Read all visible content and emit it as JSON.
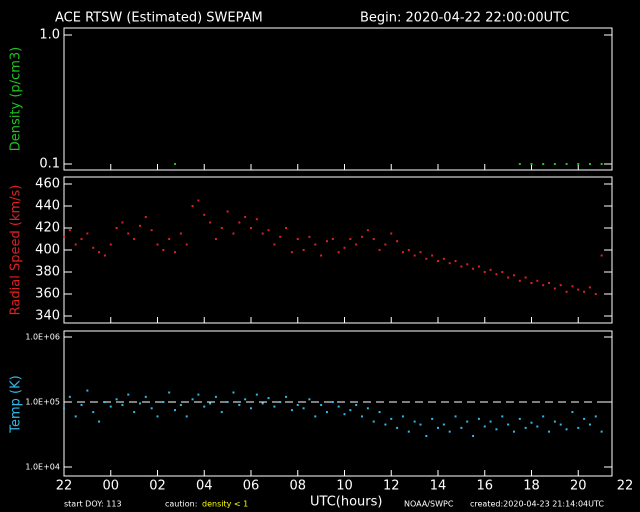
{
  "title": "ACE RTSW (Estimated) SWEPAM",
  "begin": "Begin: 2020-04-22 22:00:00UTC",
  "x_axis": {
    "label": "UTC(hours)",
    "xlim": [
      0,
      24
    ],
    "xticks": [
      {
        "value": 0,
        "label": "22"
      },
      {
        "value": 2,
        "label": "00"
      },
      {
        "value": 4,
        "label": "02"
      },
      {
        "value": 6,
        "label": "04"
      },
      {
        "value": 8,
        "label": "06"
      },
      {
        "value": 10,
        "label": "08"
      },
      {
        "value": 12,
        "label": "10"
      },
      {
        "value": 14,
        "label": "12"
      },
      {
        "value": 16,
        "label": "14"
      },
      {
        "value": 18,
        "label": "16"
      },
      {
        "value": 20,
        "label": "18"
      },
      {
        "value": 22,
        "label": "20"
      },
      {
        "value": 24,
        "label": "22"
      }
    ]
  },
  "footer": {
    "start": "start DOY: 113",
    "caution": "caution:",
    "caution_note": "density < 1",
    "credit": "NOAA/SWPC",
    "created": "created:2020-04-23 21:14:04UTC"
  },
  "chart_data": [
    {
      "type": "scatter",
      "ylabel": "Density (p/cm3)",
      "color": "#22c022",
      "log": true,
      "ylim": [
        0.1,
        1
      ],
      "yticks": [
        {
          "value": 1,
          "label": "1.0"
        },
        0.1
      ],
      "x": [
        4.75,
        19.5,
        20,
        20.5,
        21,
        21.5,
        22,
        22.5,
        23
      ],
      "values": [
        0.1,
        0.1,
        0.1,
        0.1,
        0.1,
        0.1,
        0.1,
        0.1,
        0.1
      ]
    },
    {
      "type": "scatter",
      "ylabel": "Radial Speed (km/s)",
      "color": "#e02020",
      "log": false,
      "ylim": [
        340,
        460
      ],
      "yticks": [
        340,
        360,
        380,
        400,
        420,
        440,
        460
      ],
      "x": [
        0,
        0.25,
        0.5,
        0.75,
        1,
        1.25,
        1.5,
        1.75,
        2,
        2.25,
        2.5,
        2.75,
        3,
        3.25,
        3.5,
        3.75,
        4,
        4.25,
        4.5,
        4.75,
        5,
        5.25,
        5.5,
        5.75,
        6,
        6.25,
        6.5,
        6.75,
        7,
        7.25,
        7.5,
        7.75,
        8,
        8.25,
        8.5,
        8.75,
        9,
        9.25,
        9.5,
        9.75,
        10,
        10.25,
        10.5,
        10.75,
        11,
        11.25,
        11.5,
        11.75,
        12,
        12.25,
        12.5,
        12.75,
        13,
        13.25,
        13.5,
        13.75,
        14,
        14.25,
        14.5,
        14.75,
        15,
        15.25,
        15.5,
        15.75,
        16,
        16.25,
        16.5,
        16.75,
        17,
        17.25,
        17.5,
        17.75,
        18,
        18.25,
        18.5,
        18.75,
        19,
        19.25,
        19.5,
        19.75,
        20,
        20.25,
        20.5,
        20.75,
        21,
        21.25,
        21.5,
        21.75,
        22,
        22.25,
        22.5,
        22.75,
        23
      ],
      "values": [
        412,
        418,
        405,
        410,
        415,
        402,
        398,
        395,
        405,
        420,
        425,
        415,
        410,
        422,
        430,
        418,
        405,
        400,
        410,
        398,
        415,
        405,
        440,
        445,
        432,
        425,
        410,
        420,
        435,
        415,
        425,
        430,
        420,
        428,
        415,
        418,
        405,
        412,
        420,
        398,
        410,
        400,
        412,
        405,
        395,
        408,
        410,
        398,
        402,
        410,
        405,
        412,
        418,
        410,
        400,
        405,
        415,
        408,
        398,
        400,
        395,
        398,
        392,
        395,
        390,
        392,
        388,
        390,
        385,
        387,
        383,
        385,
        380,
        382,
        378,
        380,
        375,
        377,
        372,
        375,
        370,
        372,
        368,
        370,
        365,
        368,
        362,
        367,
        364,
        362,
        366,
        360,
        395
      ]
    },
    {
      "type": "scatter",
      "ylabel": "Temp (K)",
      "color": "#30b8e8",
      "log": true,
      "hline": 100000,
      "ylim": [
        10000,
        1000000
      ],
      "yticks": [
        {
          "value": 10000,
          "label": "1.0E+04"
        },
        {
          "value": 100000,
          "label": "1.0E+05"
        },
        {
          "value": 1000000,
          "label": "1.0E+06"
        }
      ],
      "x": [
        0,
        0.25,
        0.5,
        0.75,
        1,
        1.25,
        1.5,
        1.75,
        2,
        2.25,
        2.5,
        2.75,
        3,
        3.25,
        3.5,
        3.75,
        4,
        4.25,
        4.5,
        4.75,
        5,
        5.25,
        5.5,
        5.75,
        6,
        6.25,
        6.5,
        6.75,
        7,
        7.25,
        7.5,
        7.75,
        8,
        8.25,
        8.5,
        8.75,
        9,
        9.25,
        9.5,
        9.75,
        10,
        10.25,
        10.5,
        10.75,
        11,
        11.25,
        11.5,
        11.75,
        12,
        12.25,
        12.5,
        12.75,
        13,
        13.25,
        13.5,
        13.75,
        14,
        14.25,
        14.5,
        14.75,
        15,
        15.25,
        15.5,
        15.75,
        16,
        16.25,
        16.5,
        16.75,
        17,
        17.25,
        17.5,
        17.75,
        18,
        18.25,
        18.5,
        18.75,
        19,
        19.25,
        19.5,
        19.75,
        20,
        20.25,
        20.5,
        20.75,
        21,
        21.25,
        21.5,
        21.75,
        22,
        22.25,
        22.5,
        22.75,
        23
      ],
      "values": [
        80000,
        120000,
        60000,
        90000,
        150000,
        70000,
        50000,
        100000,
        85000,
        110000,
        90000,
        130000,
        70000,
        95000,
        120000,
        80000,
        60000,
        100000,
        140000,
        75000,
        90000,
        60000,
        110000,
        130000,
        85000,
        95000,
        120000,
        70000,
        100000,
        140000,
        90000,
        110000,
        80000,
        130000,
        95000,
        115000,
        85000,
        100000,
        120000,
        75000,
        90000,
        80000,
        110000,
        60000,
        90000,
        70000,
        100000,
        85000,
        65000,
        75000,
        90000,
        60000,
        80000,
        50000,
        70000,
        45000,
        55000,
        40000,
        60000,
        35000,
        50000,
        45000,
        30000,
        55000,
        40000,
        45000,
        35000,
        60000,
        40000,
        50000,
        30000,
        55000,
        42000,
        50000,
        38000,
        60000,
        45000,
        35000,
        55000,
        40000,
        48000,
        42000,
        60000,
        35000,
        50000,
        45000,
        38000,
        70000,
        40000,
        55000,
        45000,
        60000,
        35000
      ]
    }
  ]
}
